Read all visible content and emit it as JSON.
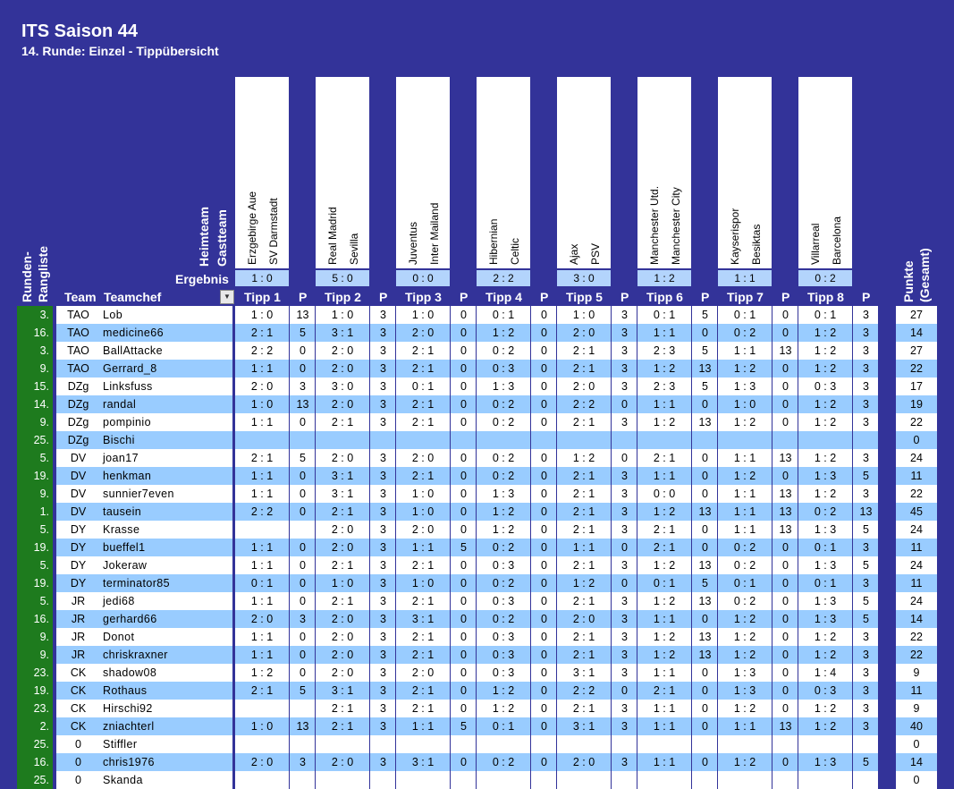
{
  "header": {
    "title": "ITS Saison 44",
    "subtitle": "14. Runde: Einzel - Tippübersicht",
    "heimteam_label": "Heimteam",
    "gastteam_label": "Gastteam",
    "ergebnis_label": "Ergebnis",
    "rangliste_label_1": "Runden-",
    "rangliste_label_2": "Rangliste",
    "team_label": "Team",
    "teamchef_label": "Teamchef",
    "punkte_label_1": "Punkte",
    "punkte_label_2": "(Gesamt)",
    "p_label": "P"
  },
  "matches": [
    {
      "home": "Erzgebirge Aue",
      "away": "SV Darmstadt",
      "result": "1 : 0",
      "tipp_label": "Tipp 1"
    },
    {
      "home": "Real Madrid",
      "away": "Sevilla",
      "result": "5 : 0",
      "tipp_label": "Tipp 2"
    },
    {
      "home": "Juventus",
      "away": "Inter Mailand",
      "result": "0 : 0",
      "tipp_label": "Tipp 3"
    },
    {
      "home": "Hibernian",
      "away": "Celtic",
      "result": "2 : 2",
      "tipp_label": "Tipp 4"
    },
    {
      "home": "Ajax",
      "away": "PSV",
      "result": "3 : 0",
      "tipp_label": "Tipp 5"
    },
    {
      "home": "Manchester Utd.",
      "away": "Manchester City",
      "result": "1 : 2",
      "tipp_label": "Tipp 6"
    },
    {
      "home": "Kayserispor",
      "away": "Besiktas",
      "result": "1 : 1",
      "tipp_label": "Tipp 7"
    },
    {
      "home": "Villarreal",
      "away": "Barcelona",
      "result": "0 : 2",
      "tipp_label": "Tipp 8"
    }
  ],
  "rows": [
    {
      "rank": "3.",
      "team": "TAO",
      "chef": "Lob",
      "tipps": [
        [
          "1 : 0",
          "13"
        ],
        [
          "1 : 0",
          "3"
        ],
        [
          "1 : 0",
          "0"
        ],
        [
          "0 : 1",
          "0"
        ],
        [
          "1 : 0",
          "3"
        ],
        [
          "0 : 1",
          "5"
        ],
        [
          "0 : 1",
          "0"
        ],
        [
          "0 : 1",
          "3"
        ]
      ],
      "total": "27"
    },
    {
      "rank": "16.",
      "team": "TAO",
      "chef": "medicine66",
      "tipps": [
        [
          "2 : 1",
          "5"
        ],
        [
          "3 : 1",
          "3"
        ],
        [
          "2 : 0",
          "0"
        ],
        [
          "1 : 2",
          "0"
        ],
        [
          "2 : 0",
          "3"
        ],
        [
          "1 : 1",
          "0"
        ],
        [
          "0 : 2",
          "0"
        ],
        [
          "1 : 2",
          "3"
        ]
      ],
      "total": "14"
    },
    {
      "rank": "3.",
      "team": "TAO",
      "chef": "BallAttacke",
      "tipps": [
        [
          "2 : 2",
          "0"
        ],
        [
          "2 : 0",
          "3"
        ],
        [
          "2 : 1",
          "0"
        ],
        [
          "0 : 2",
          "0"
        ],
        [
          "2 : 1",
          "3"
        ],
        [
          "2 : 3",
          "5"
        ],
        [
          "1 : 1",
          "13"
        ],
        [
          "1 : 2",
          "3"
        ]
      ],
      "total": "27"
    },
    {
      "rank": "9.",
      "team": "TAO",
      "chef": "Gerrard_8",
      "tipps": [
        [
          "1 : 1",
          "0"
        ],
        [
          "2 : 0",
          "3"
        ],
        [
          "2 : 1",
          "0"
        ],
        [
          "0 : 3",
          "0"
        ],
        [
          "2 : 1",
          "3"
        ],
        [
          "1 : 2",
          "13"
        ],
        [
          "1 : 2",
          "0"
        ],
        [
          "1 : 2",
          "3"
        ]
      ],
      "total": "22"
    },
    {
      "rank": "15.",
      "team": "DZg",
      "chef": "Linksfuss",
      "tipps": [
        [
          "2 : 0",
          "3"
        ],
        [
          "3 : 0",
          "3"
        ],
        [
          "0 : 1",
          "0"
        ],
        [
          "1 : 3",
          "0"
        ],
        [
          "2 : 0",
          "3"
        ],
        [
          "2 : 3",
          "5"
        ],
        [
          "1 : 3",
          "0"
        ],
        [
          "0 : 3",
          "3"
        ]
      ],
      "total": "17"
    },
    {
      "rank": "14.",
      "team": "DZg",
      "chef": "randal",
      "tipps": [
        [
          "1 : 0",
          "13"
        ],
        [
          "2 : 0",
          "3"
        ],
        [
          "2 : 1",
          "0"
        ],
        [
          "0 : 2",
          "0"
        ],
        [
          "2 : 2",
          "0"
        ],
        [
          "1 : 1",
          "0"
        ],
        [
          "1 : 0",
          "0"
        ],
        [
          "1 : 2",
          "3"
        ]
      ],
      "total": "19"
    },
    {
      "rank": "9.",
      "team": "DZg",
      "chef": "pompinio",
      "tipps": [
        [
          "1 : 1",
          "0"
        ],
        [
          "2 : 1",
          "3"
        ],
        [
          "2 : 1",
          "0"
        ],
        [
          "0 : 2",
          "0"
        ],
        [
          "2 : 1",
          "3"
        ],
        [
          "1 : 2",
          "13"
        ],
        [
          "1 : 2",
          "0"
        ],
        [
          "1 : 2",
          "3"
        ]
      ],
      "total": "22"
    },
    {
      "rank": "25.",
      "team": "DZg",
      "chef": "Bischi",
      "tipps": [
        [
          "",
          ""
        ],
        [
          "",
          ""
        ],
        [
          "",
          ""
        ],
        [
          "",
          ""
        ],
        [
          "",
          ""
        ],
        [
          "",
          ""
        ],
        [
          "",
          ""
        ],
        [
          "",
          ""
        ]
      ],
      "total": "0"
    },
    {
      "rank": "5.",
      "team": "DV",
      "chef": "joan17",
      "tipps": [
        [
          "2 : 1",
          "5"
        ],
        [
          "2 : 0",
          "3"
        ],
        [
          "2 : 0",
          "0"
        ],
        [
          "0 : 2",
          "0"
        ],
        [
          "1 : 2",
          "0"
        ],
        [
          "2 : 1",
          "0"
        ],
        [
          "1 : 1",
          "13"
        ],
        [
          "1 : 2",
          "3"
        ]
      ],
      "total": "24"
    },
    {
      "rank": "19.",
      "team": "DV",
      "chef": "henkman",
      "tipps": [
        [
          "1 : 1",
          "0"
        ],
        [
          "3 : 1",
          "3"
        ],
        [
          "2 : 1",
          "0"
        ],
        [
          "0 : 2",
          "0"
        ],
        [
          "2 : 1",
          "3"
        ],
        [
          "1 : 1",
          "0"
        ],
        [
          "1 : 2",
          "0"
        ],
        [
          "1 : 3",
          "5"
        ]
      ],
      "total": "11"
    },
    {
      "rank": "9.",
      "team": "DV",
      "chef": "sunnier7even",
      "tipps": [
        [
          "1 : 1",
          "0"
        ],
        [
          "3 : 1",
          "3"
        ],
        [
          "1 : 0",
          "0"
        ],
        [
          "1 : 3",
          "0"
        ],
        [
          "2 : 1",
          "3"
        ],
        [
          "0 : 0",
          "0"
        ],
        [
          "1 : 1",
          "13"
        ],
        [
          "1 : 2",
          "3"
        ]
      ],
      "total": "22"
    },
    {
      "rank": "1.",
      "team": "DV",
      "chef": "tausein",
      "tipps": [
        [
          "2 : 2",
          "0"
        ],
        [
          "2 : 1",
          "3"
        ],
        [
          "1 : 0",
          "0"
        ],
        [
          "1 : 2",
          "0"
        ],
        [
          "2 : 1",
          "3"
        ],
        [
          "1 : 2",
          "13"
        ],
        [
          "1 : 1",
          "13"
        ],
        [
          "0 : 2",
          "13"
        ]
      ],
      "total": "45"
    },
    {
      "rank": "5.",
      "team": "DY",
      "chef": "Krasse",
      "tipps": [
        [
          "",
          ""
        ],
        [
          "2 : 0",
          "3"
        ],
        [
          "2 : 0",
          "0"
        ],
        [
          "1 : 2",
          "0"
        ],
        [
          "2 : 1",
          "3"
        ],
        [
          "2 : 1",
          "0"
        ],
        [
          "1 : 1",
          "13"
        ],
        [
          "1 : 3",
          "5"
        ]
      ],
      "total": "24"
    },
    {
      "rank": "19.",
      "team": "DY",
      "chef": "bueffel1",
      "tipps": [
        [
          "1 : 1",
          "0"
        ],
        [
          "2 : 0",
          "3"
        ],
        [
          "1 : 1",
          "5"
        ],
        [
          "0 : 2",
          "0"
        ],
        [
          "1 : 1",
          "0"
        ],
        [
          "2 : 1",
          "0"
        ],
        [
          "0 : 2",
          "0"
        ],
        [
          "0 : 1",
          "3"
        ]
      ],
      "total": "11"
    },
    {
      "rank": "5.",
      "team": "DY",
      "chef": "Jokeraw",
      "tipps": [
        [
          "1 : 1",
          "0"
        ],
        [
          "2 : 1",
          "3"
        ],
        [
          "2 : 1",
          "0"
        ],
        [
          "0 : 3",
          "0"
        ],
        [
          "2 : 1",
          "3"
        ],
        [
          "1 : 2",
          "13"
        ],
        [
          "0 : 2",
          "0"
        ],
        [
          "1 : 3",
          "5"
        ]
      ],
      "total": "24"
    },
    {
      "rank": "19.",
      "team": "DY",
      "chef": "terminator85",
      "tipps": [
        [
          "0 : 1",
          "0"
        ],
        [
          "1 : 0",
          "3"
        ],
        [
          "1 : 0",
          "0"
        ],
        [
          "0 : 2",
          "0"
        ],
        [
          "1 : 2",
          "0"
        ],
        [
          "0 : 1",
          "5"
        ],
        [
          "0 : 1",
          "0"
        ],
        [
          "0 : 1",
          "3"
        ]
      ],
      "total": "11"
    },
    {
      "rank": "5.",
      "team": "JR",
      "chef": "jedi68",
      "tipps": [
        [
          "1 : 1",
          "0"
        ],
        [
          "2 : 1",
          "3"
        ],
        [
          "2 : 1",
          "0"
        ],
        [
          "0 : 3",
          "0"
        ],
        [
          "2 : 1",
          "3"
        ],
        [
          "1 : 2",
          "13"
        ],
        [
          "0 : 2",
          "0"
        ],
        [
          "1 : 3",
          "5"
        ]
      ],
      "total": "24"
    },
    {
      "rank": "16.",
      "team": "JR",
      "chef": "gerhard66",
      "tipps": [
        [
          "2 : 0",
          "3"
        ],
        [
          "2 : 0",
          "3"
        ],
        [
          "3 : 1",
          "0"
        ],
        [
          "0 : 2",
          "0"
        ],
        [
          "2 : 0",
          "3"
        ],
        [
          "1 : 1",
          "0"
        ],
        [
          "1 : 2",
          "0"
        ],
        [
          "1 : 3",
          "5"
        ]
      ],
      "total": "14"
    },
    {
      "rank": "9.",
      "team": "JR",
      "chef": "Donot",
      "tipps": [
        [
          "1 : 1",
          "0"
        ],
        [
          "2 : 0",
          "3"
        ],
        [
          "2 : 1",
          "0"
        ],
        [
          "0 : 3",
          "0"
        ],
        [
          "2 : 1",
          "3"
        ],
        [
          "1 : 2",
          "13"
        ],
        [
          "1 : 2",
          "0"
        ],
        [
          "1 : 2",
          "3"
        ]
      ],
      "total": "22"
    },
    {
      "rank": "9.",
      "team": "JR",
      "chef": "chriskraxner",
      "tipps": [
        [
          "1 : 1",
          "0"
        ],
        [
          "2 : 0",
          "3"
        ],
        [
          "2 : 1",
          "0"
        ],
        [
          "0 : 3",
          "0"
        ],
        [
          "2 : 1",
          "3"
        ],
        [
          "1 : 2",
          "13"
        ],
        [
          "1 : 2",
          "0"
        ],
        [
          "1 : 2",
          "3"
        ]
      ],
      "total": "22"
    },
    {
      "rank": "23.",
      "team": "CK",
      "chef": "shadow08",
      "tipps": [
        [
          "1 : 2",
          "0"
        ],
        [
          "2 : 0",
          "3"
        ],
        [
          "2 : 0",
          "0"
        ],
        [
          "0 : 3",
          "0"
        ],
        [
          "3 : 1",
          "3"
        ],
        [
          "1 : 1",
          "0"
        ],
        [
          "1 : 3",
          "0"
        ],
        [
          "1 : 4",
          "3"
        ]
      ],
      "total": "9"
    },
    {
      "rank": "19.",
      "team": "CK",
      "chef": "Rothaus",
      "tipps": [
        [
          "2 : 1",
          "5"
        ],
        [
          "3 : 1",
          "3"
        ],
        [
          "2 : 1",
          "0"
        ],
        [
          "1 : 2",
          "0"
        ],
        [
          "2 : 2",
          "0"
        ],
        [
          "2 : 1",
          "0"
        ],
        [
          "1 : 3",
          "0"
        ],
        [
          "0 : 3",
          "3"
        ]
      ],
      "total": "11"
    },
    {
      "rank": "23.",
      "team": "CK",
      "chef": "Hirschi92",
      "tipps": [
        [
          "",
          ""
        ],
        [
          "2 : 1",
          "3"
        ],
        [
          "2 : 1",
          "0"
        ],
        [
          "1 : 2",
          "0"
        ],
        [
          "2 : 1",
          "3"
        ],
        [
          "1 : 1",
          "0"
        ],
        [
          "1 : 2",
          "0"
        ],
        [
          "1 : 2",
          "3"
        ]
      ],
      "total": "9"
    },
    {
      "rank": "2.",
      "team": "CK",
      "chef": "zniachterl",
      "tipps": [
        [
          "1 : 0",
          "13"
        ],
        [
          "2 : 1",
          "3"
        ],
        [
          "1 : 1",
          "5"
        ],
        [
          "0 : 1",
          "0"
        ],
        [
          "3 : 1",
          "3"
        ],
        [
          "1 : 1",
          "0"
        ],
        [
          "1 : 1",
          "13"
        ],
        [
          "1 : 2",
          "3"
        ]
      ],
      "total": "40"
    },
    {
      "rank": "25.",
      "team": "0",
      "chef": "Stiffler",
      "tipps": [
        [
          "",
          ""
        ],
        [
          "",
          ""
        ],
        [
          "",
          ""
        ],
        [
          "",
          ""
        ],
        [
          "",
          ""
        ],
        [
          "",
          ""
        ],
        [
          "",
          ""
        ],
        [
          "",
          ""
        ]
      ],
      "total": "0"
    },
    {
      "rank": "16.",
      "team": "0",
      "chef": "chris1976",
      "tipps": [
        [
          "2 : 0",
          "3"
        ],
        [
          "2 : 0",
          "3"
        ],
        [
          "3 : 1",
          "0"
        ],
        [
          "0 : 2",
          "0"
        ],
        [
          "2 : 0",
          "3"
        ],
        [
          "1 : 1",
          "0"
        ],
        [
          "1 : 2",
          "0"
        ],
        [
          "1 : 3",
          "5"
        ]
      ],
      "total": "14"
    },
    {
      "rank": "25.",
      "team": "0",
      "chef": "Skanda",
      "tipps": [
        [
          "",
          ""
        ],
        [
          "",
          ""
        ],
        [
          "",
          ""
        ],
        [
          "",
          ""
        ],
        [
          "",
          ""
        ],
        [
          "",
          ""
        ],
        [
          "",
          ""
        ],
        [
          "",
          ""
        ]
      ],
      "total": "0"
    }
  ],
  "colors": {
    "background": "#333399",
    "row_white": "#ffffff",
    "row_blue": "#99ccff",
    "rank_green": "#1e7b1e",
    "result_blue": "#b3d4fc"
  },
  "icons": {
    "filter": "dropdown-arrow-icon"
  }
}
